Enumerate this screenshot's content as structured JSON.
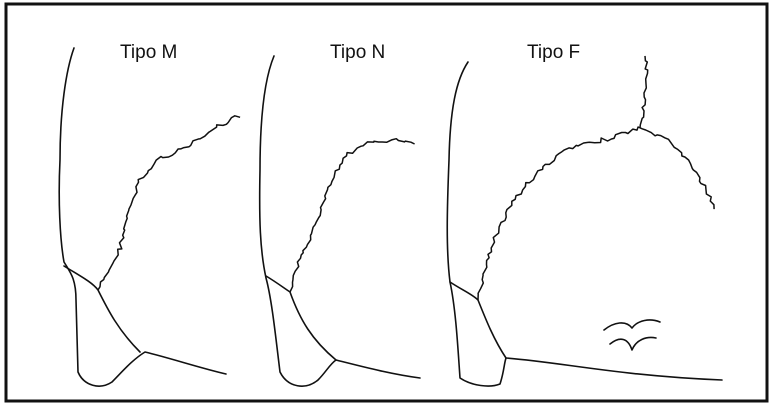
{
  "panels": [
    {
      "label": "Tipo M"
    },
    {
      "label": "Tipo N"
    },
    {
      "label": "Tipo F"
    }
  ]
}
